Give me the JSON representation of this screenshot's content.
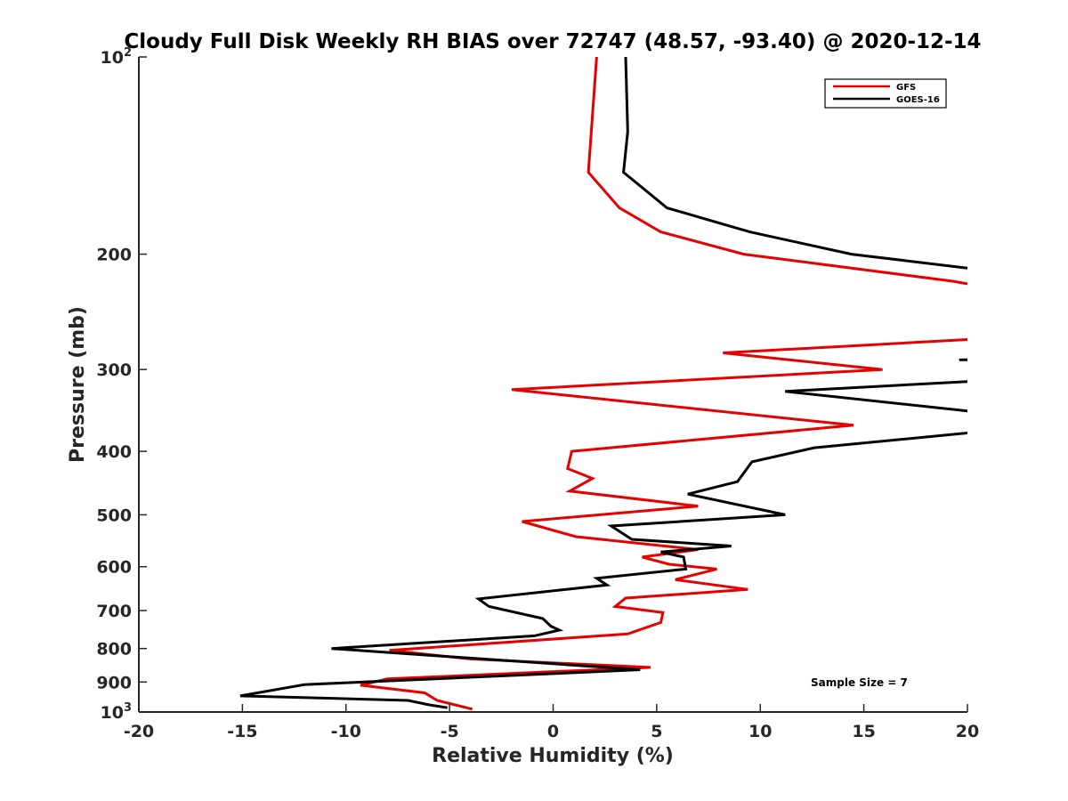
{
  "chart_data": {
    "type": "line",
    "title": "Cloudy Full Disk Weekly RH BIAS over 72747 (48.57, -93.40) @ 2020-12-14",
    "xlabel": "Relative Humidity (%)",
    "ylabel": "Pressure (mb)",
    "xlim": [
      -20,
      20
    ],
    "ylim": [
      1000,
      100
    ],
    "yscale": "log",
    "grid": false,
    "legend_position": "top-right",
    "x_ticks": [
      {
        "value": -20,
        "label": "-20"
      },
      {
        "value": -15,
        "label": "-15"
      },
      {
        "value": -10,
        "label": "-10"
      },
      {
        "value": -5,
        "label": "-5"
      },
      {
        "value": 0,
        "label": "0"
      },
      {
        "value": 5,
        "label": "5"
      },
      {
        "value": 10,
        "label": "10"
      },
      {
        "value": 15,
        "label": "15"
      },
      {
        "value": 20,
        "label": "20"
      }
    ],
    "y_ticks": [
      {
        "value": 100,
        "label": "10",
        "sup": "2"
      },
      {
        "value": 200,
        "label": "200",
        "sup": ""
      },
      {
        "value": 300,
        "label": "300",
        "sup": ""
      },
      {
        "value": 400,
        "label": "400",
        "sup": ""
      },
      {
        "value": 500,
        "label": "500",
        "sup": ""
      },
      {
        "value": 600,
        "label": "600",
        "sup": ""
      },
      {
        "value": 700,
        "label": "700",
        "sup": ""
      },
      {
        "value": 800,
        "label": "800",
        "sup": ""
      },
      {
        "value": 900,
        "label": "900",
        "sup": ""
      },
      {
        "value": 1000,
        "label": "10",
        "sup": "3"
      }
    ],
    "annotation": "Sample Size = 7",
    "series": [
      {
        "name": "GFS",
        "color": "#e60000",
        "segments": [
          [
            [
              2.1,
              100
            ],
            [
              1.7,
              150
            ],
            [
              3.2,
              170
            ],
            [
              5.2,
              185
            ],
            [
              9.2,
              200
            ],
            [
              19.3,
              220
            ],
            [
              20.0,
              222
            ]
          ],
          [
            [
              20.0,
              270
            ],
            [
              8.2,
              283
            ],
            [
              15.9,
              300
            ],
            [
              -2.0,
              322
            ],
            [
              14.5,
              365
            ],
            [
              0.9,
              400
            ],
            [
              0.7,
              425
            ],
            [
              1.9,
              440
            ],
            [
              0.8,
              460
            ],
            [
              7.0,
              485
            ],
            [
              -1.5,
              512
            ],
            [
              1.1,
              540
            ],
            [
              7.0,
              565
            ],
            [
              4.3,
              580
            ],
            [
              5.6,
              595
            ],
            [
              7.9,
              605
            ],
            [
              5.9,
              628
            ],
            [
              9.4,
              650
            ],
            [
              3.5,
              670
            ],
            [
              3.0,
              690
            ],
            [
              5.3,
              705
            ],
            [
              5.2,
              730
            ],
            [
              3.6,
              760
            ],
            [
              -7.9,
              805
            ],
            [
              -4.0,
              830
            ],
            [
              4.7,
              855
            ],
            [
              -8.0,
              890
            ],
            [
              -9.3,
              910
            ],
            [
              -6.2,
              935
            ],
            [
              -5.6,
              960
            ],
            [
              -3.9,
              990
            ]
          ]
        ]
      },
      {
        "name": "GOES-16",
        "color": "#000000",
        "segments": [
          [
            [
              3.5,
              100
            ],
            [
              3.6,
              130
            ],
            [
              3.4,
              150
            ],
            [
              5.5,
              170
            ],
            [
              9.5,
              185
            ],
            [
              14.4,
              200
            ],
            [
              20.0,
              210
            ]
          ],
          [
            [
              20.0,
              290
            ],
            [
              19.6,
              290
            ]
          ],
          [
            [
              20.0,
              313
            ],
            [
              11.2,
              324
            ],
            [
              20.0,
              347
            ]
          ],
          [
            [
              20.0,
              375
            ],
            [
              12.6,
              395
            ],
            [
              9.6,
              415
            ],
            [
              8.9,
              445
            ],
            [
              6.5,
              465
            ],
            [
              11.2,
              500
            ],
            [
              2.8,
              520
            ],
            [
              3.8,
              545
            ],
            [
              8.6,
              558
            ],
            [
              5.2,
              570
            ],
            [
              6.3,
              580
            ],
            [
              6.4,
              605
            ],
            [
              2.1,
              625
            ],
            [
              2.6,
              640
            ],
            [
              -3.6,
              672
            ],
            [
              -3.1,
              690
            ],
            [
              -0.5,
              720
            ],
            [
              -0.1,
              740
            ],
            [
              0.3,
              750
            ],
            [
              -0.9,
              765
            ],
            [
              -10.7,
              800
            ],
            [
              4.2,
              862
            ],
            [
              -12.0,
              908
            ],
            [
              -15.1,
              945
            ],
            [
              -7.0,
              960
            ],
            [
              -6.0,
              975
            ],
            [
              -5.1,
              985
            ]
          ]
        ]
      }
    ]
  }
}
